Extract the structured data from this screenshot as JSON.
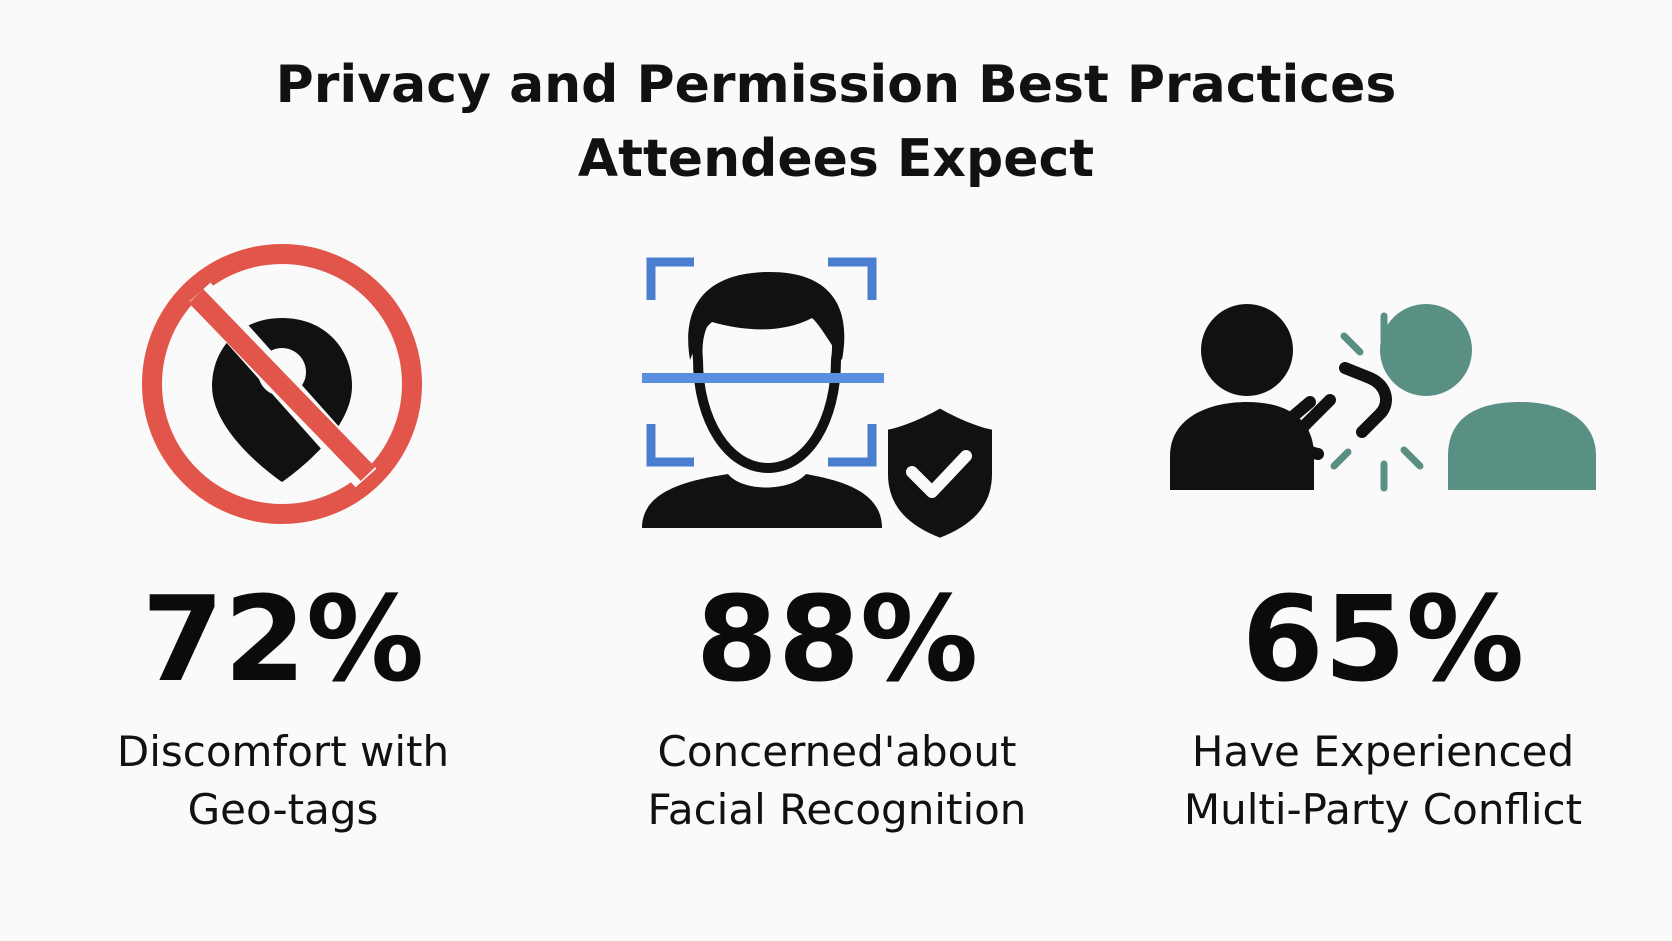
{
  "header": {
    "title_lines": [
      "Privacy and Permission Best Practices",
      "Attendees Expect"
    ]
  },
  "stats": [
    {
      "value": "72%",
      "label_lines": [
        "Discomfort with",
        "Geo-tags"
      ]
    },
    {
      "value": "88%",
      "label_lines": [
        "Concerned'about",
        "Facial Recognition"
      ]
    },
    {
      "value": "65%",
      "label_lines": [
        "Have Experienced",
        "Multi-Party Conflict"
      ]
    }
  ]
}
